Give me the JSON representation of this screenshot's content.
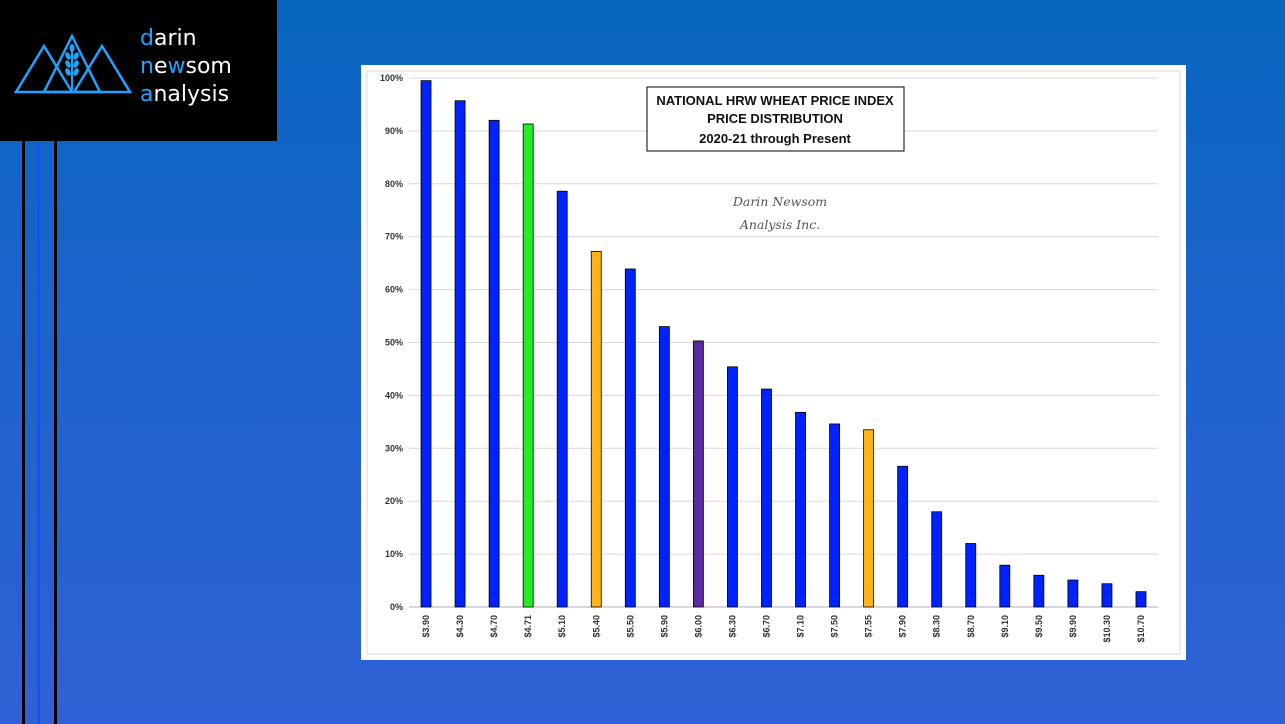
{
  "logo": {
    "line1": {
      "first": "d",
      "rest": "arin"
    },
    "line2": {
      "first": "n",
      "accent": "e",
      "mid": "w",
      "rest": "som"
    },
    "line3": {
      "first": "a",
      "rest": "nalysis"
    }
  },
  "colors": {
    "background": "#1f63cc",
    "logo_bg": "#000000",
    "logo_accent": "#1ea3ff",
    "bar_blue": "#0022ff",
    "bar_green": "#22ee22",
    "bar_orange": "#ffb21a",
    "bar_purple": "#5a2a9e"
  },
  "chart_data": {
    "type": "bar",
    "title_lines": [
      "NATIONAL HRW WHEAT PRICE INDEX",
      "PRICE DISTRIBUTION",
      "2020-21 through Present"
    ],
    "watermark": [
      "Darin Newsom",
      "Analysis Inc."
    ],
    "categories": [
      "$3.90",
      "$4.30",
      "$4.70",
      "$4.71",
      "$5.10",
      "$5.40",
      "$5.50",
      "$5.90",
      "$6.00",
      "$6.30",
      "$6.70",
      "$7.10",
      "$7.50",
      "$7.55",
      "$7.90",
      "$8.30",
      "$8.70",
      "$9.10",
      "$9.50",
      "$9.90",
      "$10.30",
      "$10.70"
    ],
    "values": [
      99.5,
      95.7,
      92.0,
      91.3,
      78.6,
      67.2,
      63.9,
      53.0,
      50.3,
      45.4,
      41.2,
      36.8,
      34.6,
      33.5,
      26.6,
      18.0,
      12.0,
      7.9,
      6.0,
      5.1,
      4.4,
      2.9
    ],
    "bar_colors": [
      "blue",
      "blue",
      "blue",
      "green",
      "blue",
      "orange",
      "blue",
      "blue",
      "purple",
      "blue",
      "blue",
      "blue",
      "blue",
      "orange",
      "blue",
      "blue",
      "blue",
      "blue",
      "blue",
      "blue",
      "blue",
      "blue"
    ],
    "y_ticks": [
      "0%",
      "10%",
      "20%",
      "30%",
      "40%",
      "50%",
      "60%",
      "70%",
      "80%",
      "90%",
      "100%"
    ],
    "ylim": [
      0,
      100
    ],
    "grid": true,
    "xlabel": "",
    "ylabel": ""
  }
}
